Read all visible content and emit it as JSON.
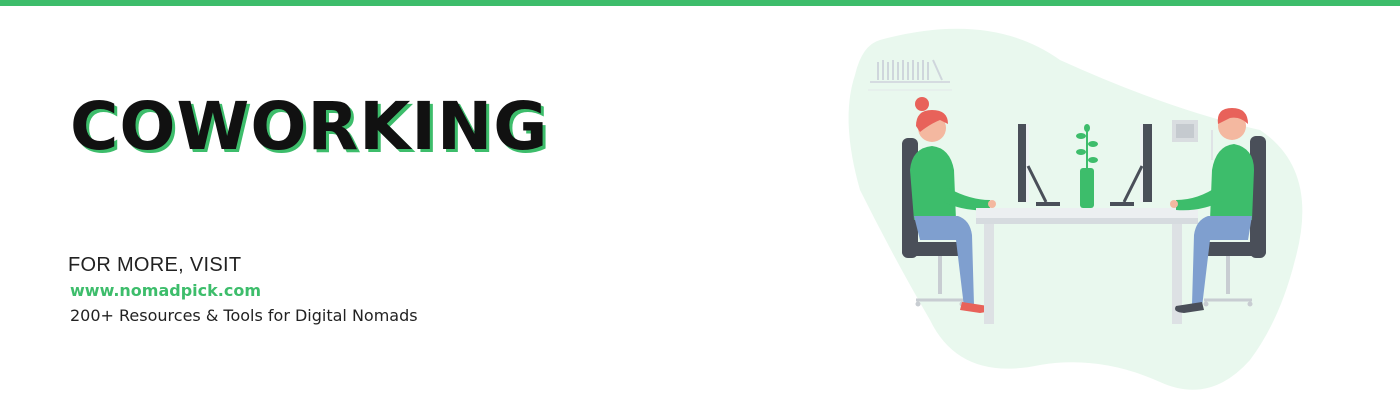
{
  "banner": {
    "title": "COWORKING",
    "visit_label": "FOR MORE, VISIT",
    "url": "www.nomadpick.com",
    "tagline": "200+ Resources & Tools for Digital Nomads"
  },
  "colors": {
    "accent": "#3dbd6b",
    "blob": "#e9f8ee",
    "text": "#111111",
    "hair": "#e8625a",
    "pants": "#7f9fcf",
    "chair": "#4a4f59"
  },
  "illustration": {
    "name": "two-people-at-desk-illustration"
  }
}
